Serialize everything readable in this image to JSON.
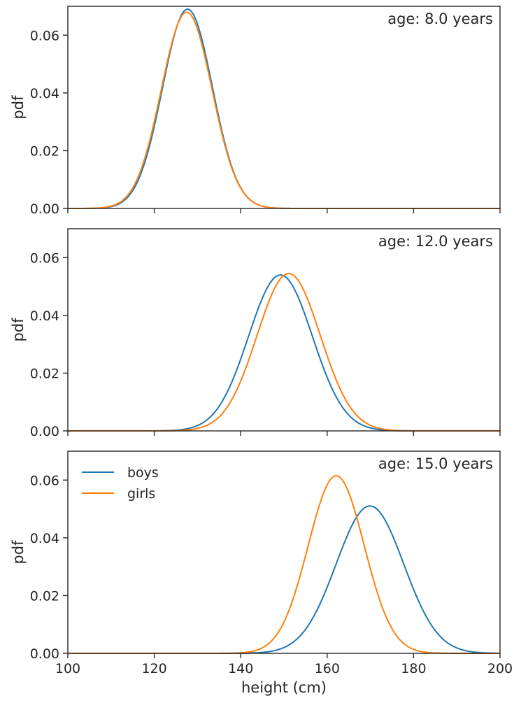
{
  "chart_data": {
    "type": "line",
    "xlabel": "height (cm)",
    "ylabel": "pdf",
    "xlim": [
      100,
      200
    ],
    "ylim": [
      0,
      0.07
    ],
    "xticks": [
      100,
      120,
      140,
      160,
      180,
      200
    ],
    "xtick_labels": [
      "100",
      "120",
      "140",
      "160",
      "180",
      "200"
    ],
    "yticks": [
      0,
      0.02,
      0.04,
      0.06
    ],
    "ytick_labels": [
      "0.00",
      "0.02",
      "0.04",
      "0.06"
    ],
    "grid": false,
    "legend": {
      "placement": "top-left",
      "panel": 2,
      "entries": [
        "boys",
        "girls"
      ]
    },
    "colors": {
      "boys": "#1f77b4",
      "girls": "#ff7f0e"
    },
    "panels": [
      {
        "annotation": "age: 8.0 years",
        "series": [
          {
            "name": "boys",
            "distribution": "normal",
            "mean": 127.7,
            "sd": 5.78,
            "peak": 0.069
          },
          {
            "name": "girls",
            "distribution": "normal",
            "mean": 127.5,
            "sd": 5.87,
            "peak": 0.068
          }
        ]
      },
      {
        "annotation": "age: 12.0 years",
        "series": [
          {
            "name": "boys",
            "distribution": "normal",
            "mean": 149.2,
            "sd": 7.39,
            "peak": 0.054
          },
          {
            "name": "girls",
            "distribution": "normal",
            "mean": 151.1,
            "sd": 7.32,
            "peak": 0.0545
          }
        ]
      },
      {
        "annotation": "age: 15.0 years",
        "series": [
          {
            "name": "boys",
            "distribution": "normal",
            "mean": 169.9,
            "sd": 7.82,
            "peak": 0.051
          },
          {
            "name": "girls",
            "distribution": "normal",
            "mean": 162.1,
            "sd": 6.49,
            "peak": 0.0615
          }
        ]
      }
    ]
  }
}
